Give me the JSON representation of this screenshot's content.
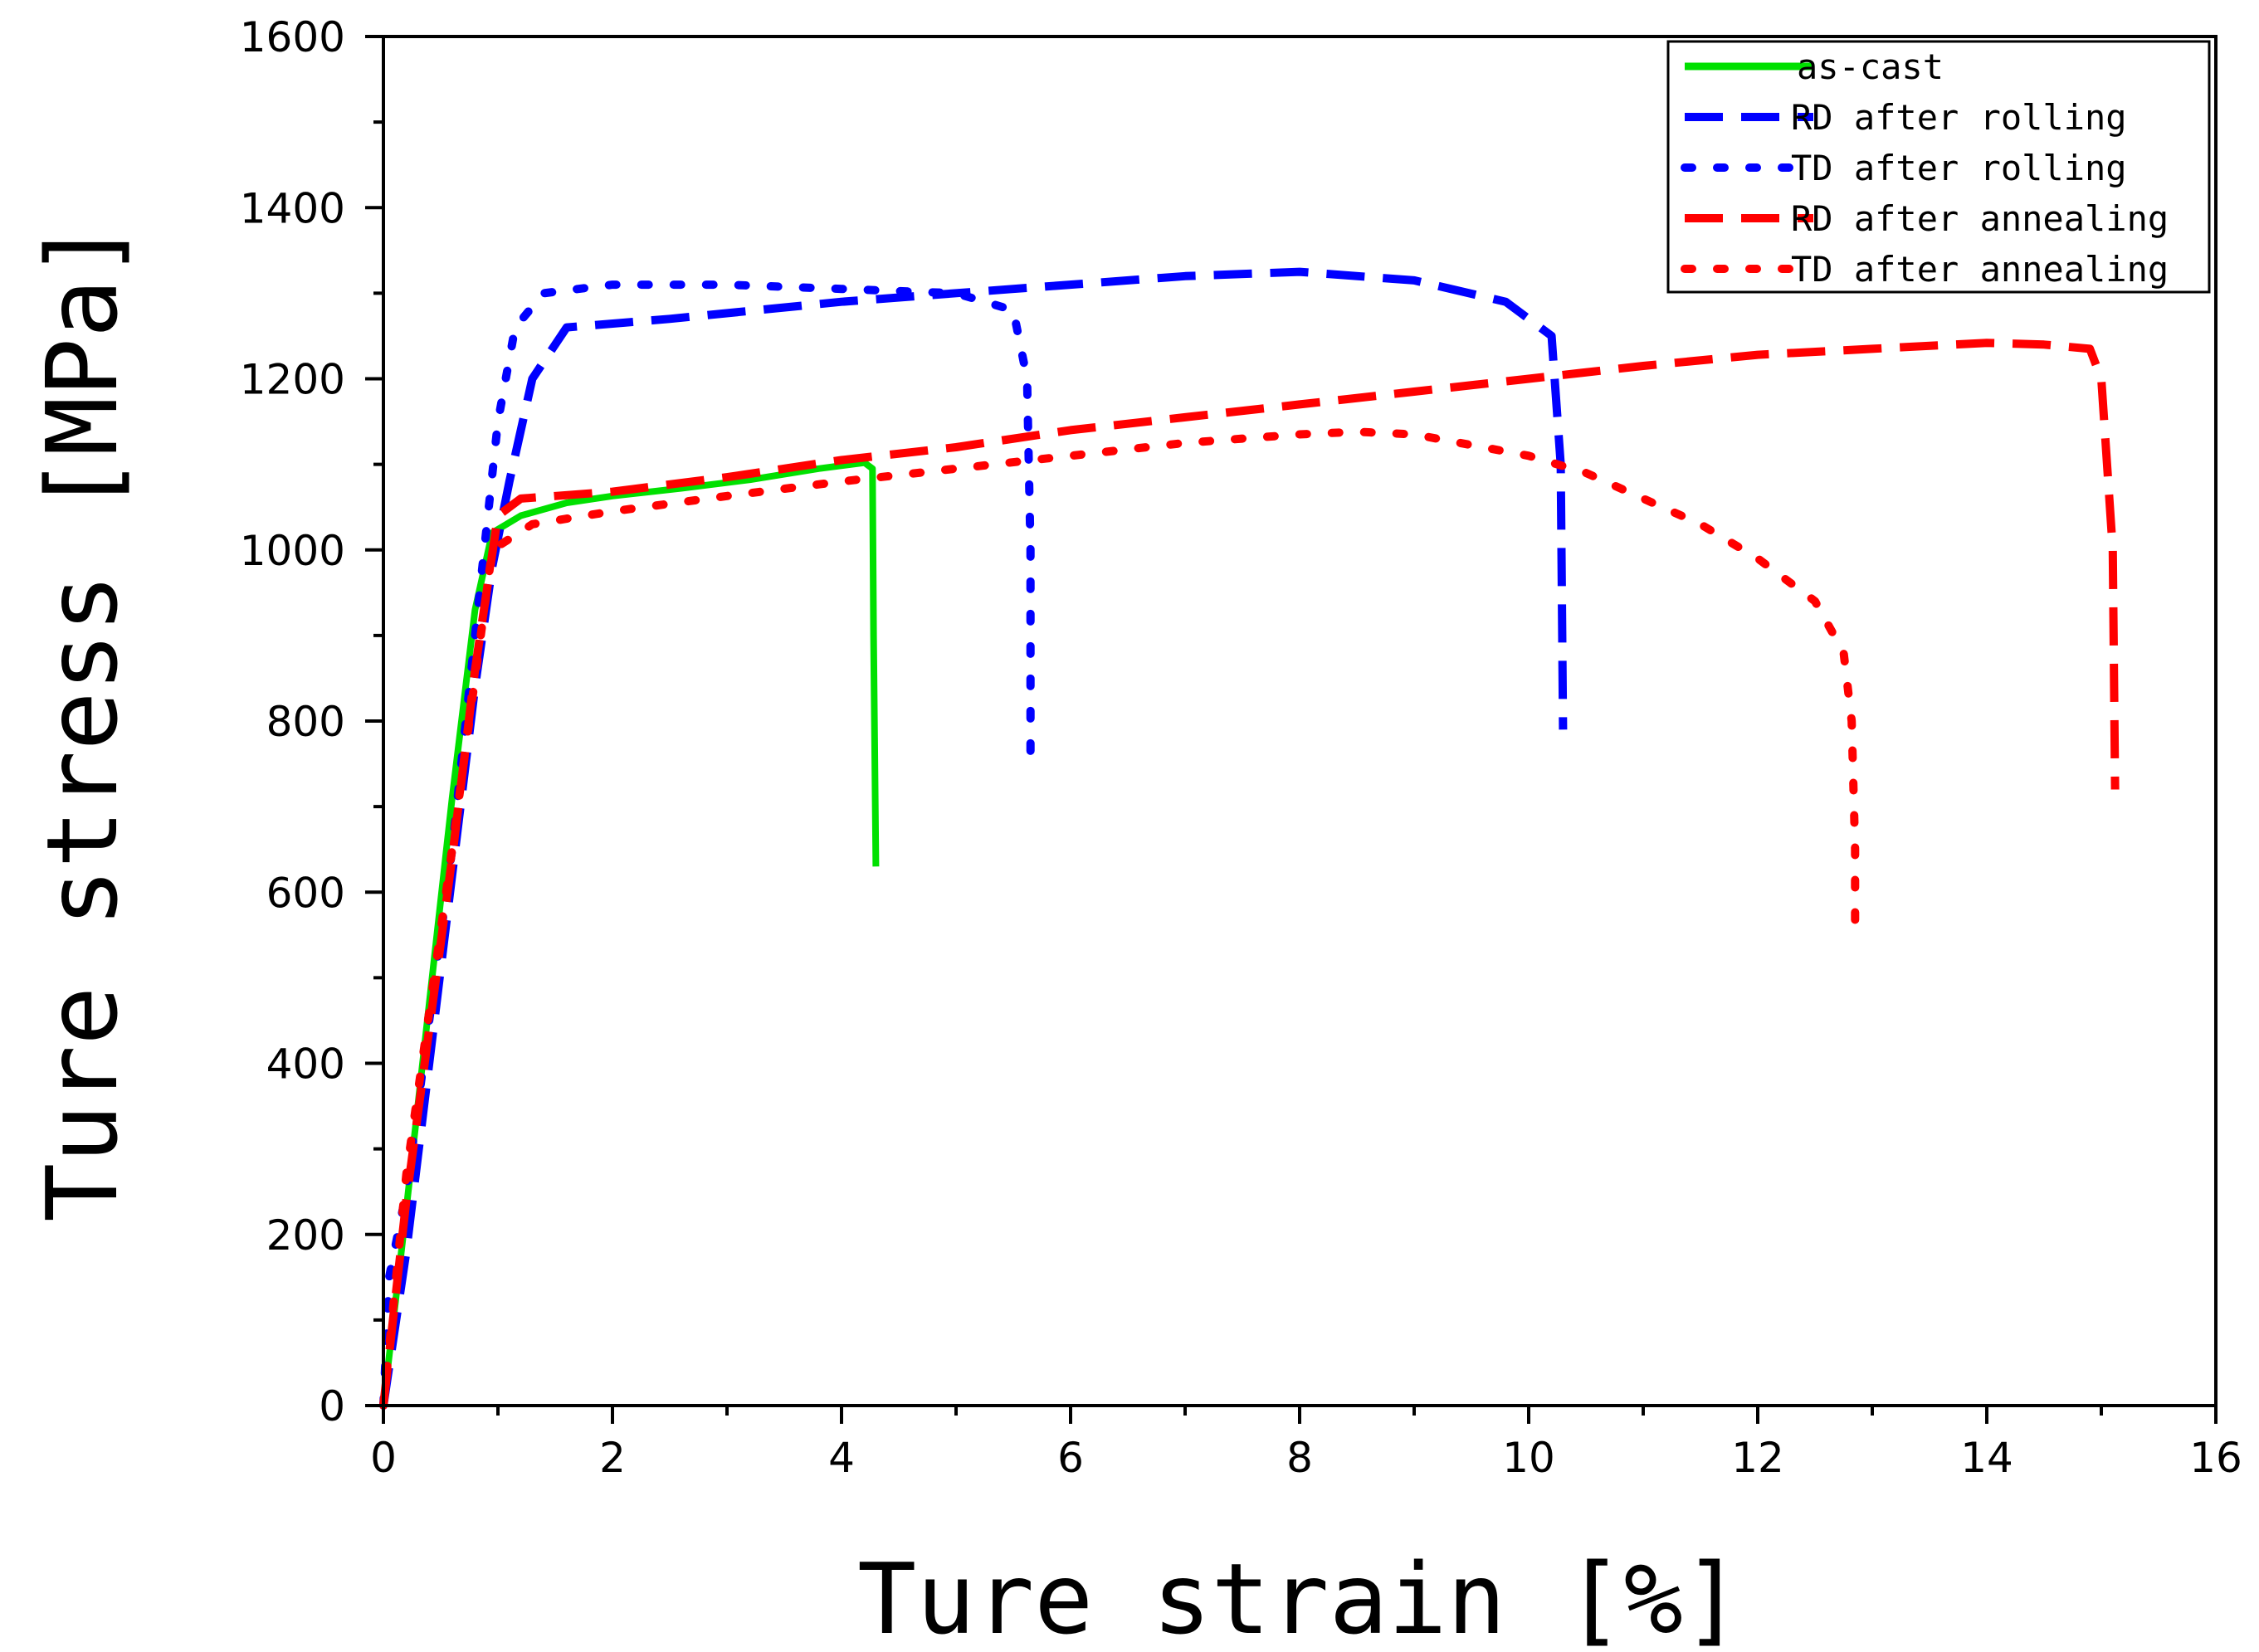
{
  "chart_data": {
    "type": "line",
    "title": "",
    "xlabel": "Ture strain [%]",
    "ylabel": "Ture stress [MPa]",
    "xlim": [
      0,
      16
    ],
    "ylim": [
      0,
      1600
    ],
    "xticks": [
      0,
      2,
      4,
      6,
      8,
      10,
      12,
      14,
      16
    ],
    "yticks": [
      0,
      200,
      400,
      600,
      800,
      1000,
      1200,
      1400,
      1600
    ],
    "grid": false,
    "legend_position": "top-right",
    "series": [
      {
        "name": "as-cast",
        "color": "#00e000",
        "style": "solid",
        "x": [
          0,
          0.2,
          0.4,
          0.6,
          0.8,
          0.95,
          1.2,
          1.6,
          2.0,
          2.6,
          3.2,
          3.8,
          4.2,
          4.27,
          4.28,
          4.3
        ],
        "y": [
          0,
          230,
          470,
          710,
          930,
          1020,
          1040,
          1055,
          1063,
          1072,
          1082,
          1095,
          1102,
          1095,
          900,
          630
        ]
      },
      {
        "name": "RD after rolling",
        "color": "#0000ff",
        "style": "dashed",
        "x": [
          0,
          0.2,
          0.4,
          0.6,
          0.8,
          0.95,
          1.1,
          1.3,
          1.6,
          2.5,
          4.0,
          5.5,
          7.0,
          8.0,
          9.0,
          9.8,
          10.2,
          10.28,
          10.3
        ],
        "y": [
          0,
          180,
          400,
          620,
          840,
          980,
          1080,
          1200,
          1260,
          1270,
          1290,
          1305,
          1320,
          1325,
          1315,
          1290,
          1250,
          1100,
          790
        ]
      },
      {
        "name": "TD after rolling",
        "color": "#0000ff",
        "style": "dotted",
        "x": [
          0,
          0.05,
          0.2,
          0.4,
          0.6,
          0.8,
          1.0,
          1.15,
          1.4,
          2.0,
          3.0,
          4.0,
          5.0,
          5.5,
          5.62,
          5.65,
          5.65
        ],
        "y": [
          0,
          150,
          250,
          450,
          650,
          900,
          1150,
          1260,
          1300,
          1310,
          1310,
          1305,
          1300,
          1280,
          1200,
          1000,
          760
        ]
      },
      {
        "name": "RD after annealing",
        "color": "#ff0000",
        "style": "dashed",
        "x": [
          0,
          0.2,
          0.4,
          0.6,
          0.8,
          1.0,
          1.2,
          1.5,
          2.0,
          3.0,
          4.0,
          5.0,
          6.0,
          7.0,
          8.0,
          9.0,
          10.0,
          11.0,
          12.0,
          13.0,
          14.0,
          14.5,
          14.9,
          15.0,
          15.1,
          15.12
        ],
        "y": [
          0,
          240,
          440,
          640,
          860,
          1040,
          1060,
          1063,
          1068,
          1085,
          1105,
          1120,
          1140,
          1155,
          1170,
          1185,
          1200,
          1215,
          1228,
          1235,
          1242,
          1240,
          1235,
          1200,
          1000,
          720
        ]
      },
      {
        "name": "TD after annealing",
        "color": "#ff0000",
        "style": "dotted",
        "x": [
          0,
          0.2,
          0.4,
          0.6,
          0.8,
          0.95,
          1.3,
          2.0,
          3.0,
          4.0,
          5.0,
          6.0,
          7.0,
          8.0,
          8.5,
          9.0,
          10.0,
          10.5,
          11.0,
          11.5,
          12.0,
          12.5,
          12.75,
          12.82,
          12.85,
          12.85
        ],
        "y": [
          0,
          270,
          460,
          650,
          850,
          1000,
          1030,
          1045,
          1063,
          1080,
          1095,
          1110,
          1125,
          1135,
          1138,
          1135,
          1110,
          1090,
          1060,
          1030,
          990,
          940,
          880,
          800,
          650,
          540
        ]
      }
    ]
  }
}
